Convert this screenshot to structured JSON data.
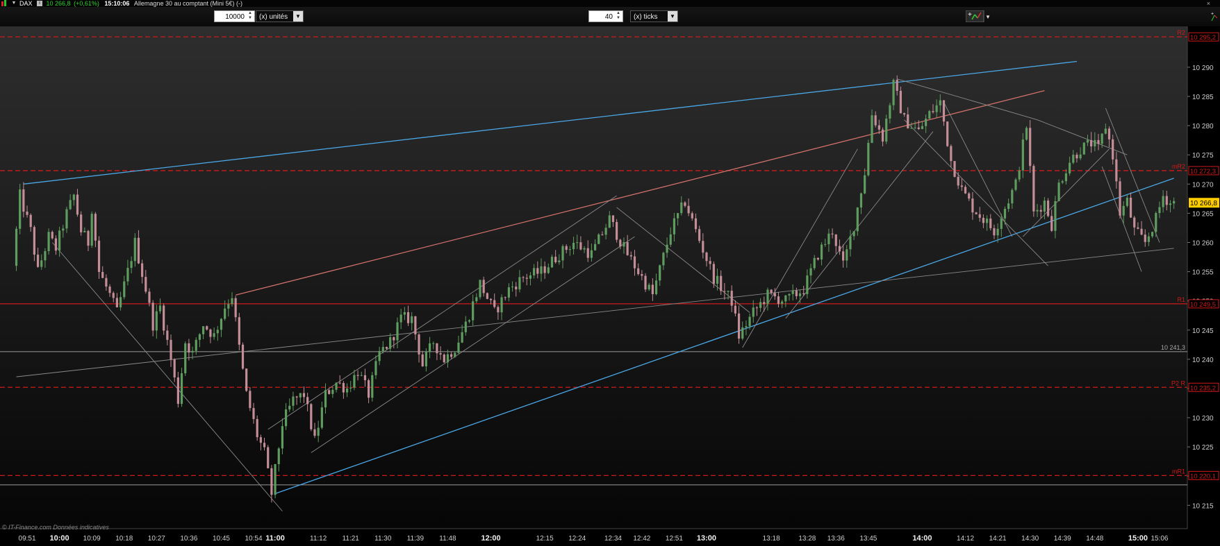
{
  "header": {
    "market_status_icon": "red-green-status-icon",
    "symbol": "DAX",
    "info_icon": "info-icon",
    "price": "10 266,8",
    "change": "(+0,61%)",
    "time": "15:10:06",
    "description": "Allemagne 30 au comptant (Mini 5€) (-)"
  },
  "toolbar": {
    "quantity_value": "10000",
    "quantity_unit": "(x) unités",
    "ticks_value": "40",
    "ticks_unit": "(x) ticks",
    "tools_icon": "chart-tools-icon"
  },
  "colors": {
    "background_top": "#2e2e2e",
    "background_bottom": "#060606",
    "candle_up": "#5f9c5f",
    "candle_down": "#c48e98",
    "pivot_line": "#d01a1a",
    "trend_blue": "#4aa8e8",
    "trend_red": "#d0706a",
    "trend_grey": "#8a8a8a",
    "price_tag": "#ffcc00"
  },
  "chart_data": {
    "type": "candlestick",
    "instrument": "DAX",
    "ylim": [
      10211,
      10297
    ],
    "y_ticks": [
      10215,
      10220,
      10225,
      10230,
      10235,
      10240,
      10245,
      10250,
      10255,
      10260,
      10265,
      10270,
      10275,
      10280,
      10285,
      10290
    ],
    "y_tick_labels": [
      "10 215",
      "10 220",
      "10 225",
      "10 230",
      "10 235",
      "10 240",
      "10 245",
      "10 250",
      "10 255",
      "10 260",
      "10 265",
      "10 270",
      "10 275",
      "10 280",
      "10 285",
      "10 290"
    ],
    "x_ticks": [
      {
        "label": "09:51",
        "bold": false
      },
      {
        "label": "10:00",
        "bold": true
      },
      {
        "label": "10:09",
        "bold": false
      },
      {
        "label": "10:18",
        "bold": false
      },
      {
        "label": "10:27",
        "bold": false
      },
      {
        "label": "10:36",
        "bold": false
      },
      {
        "label": "10:45",
        "bold": false
      },
      {
        "label": "10:54",
        "bold": false
      },
      {
        "label": "11:00",
        "bold": true
      },
      {
        "label": "11:12",
        "bold": false
      },
      {
        "label": "11:21",
        "bold": false
      },
      {
        "label": "11:30",
        "bold": false
      },
      {
        "label": "11:39",
        "bold": false
      },
      {
        "label": "11:48",
        "bold": false
      },
      {
        "label": "12:00",
        "bold": true
      },
      {
        "label": "12:15",
        "bold": false
      },
      {
        "label": "12:24",
        "bold": false
      },
      {
        "label": "12:34",
        "bold": false
      },
      {
        "label": "12:42",
        "bold": false
      },
      {
        "label": "12:51",
        "bold": false
      },
      {
        "label": "13:00",
        "bold": true
      },
      {
        "label": "13:18",
        "bold": false
      },
      {
        "label": "13:28",
        "bold": false
      },
      {
        "label": "13:36",
        "bold": false
      },
      {
        "label": "13:45",
        "bold": false
      },
      {
        "label": "14:00",
        "bold": true
      },
      {
        "label": "14:12",
        "bold": false
      },
      {
        "label": "14:21",
        "bold": false
      },
      {
        "label": "14:30",
        "bold": false
      },
      {
        "label": "14:39",
        "bold": false
      },
      {
        "label": "14:48",
        "bold": false
      },
      {
        "label": "15:00",
        "bold": true
      },
      {
        "label": "15:06",
        "bold": false
      }
    ],
    "close_path": [
      {
        "t": "09:48",
        "price": 10256
      },
      {
        "t": "09:50",
        "price": 10268
      },
      {
        "t": "09:53",
        "price": 10262
      },
      {
        "t": "09:55",
        "price": 10255
      },
      {
        "t": "09:58",
        "price": 10261
      },
      {
        "t": "10:00",
        "price": 10259
      },
      {
        "t": "10:03",
        "price": 10265
      },
      {
        "t": "10:05",
        "price": 10268
      },
      {
        "t": "10:07",
        "price": 10262
      },
      {
        "t": "10:09",
        "price": 10260
      },
      {
        "t": "10:10",
        "price": 10266
      },
      {
        "t": "10:12",
        "price": 10255
      },
      {
        "t": "10:15",
        "price": 10251
      },
      {
        "t": "10:17",
        "price": 10248
      },
      {
        "t": "10:20",
        "price": 10255
      },
      {
        "t": "10:22",
        "price": 10260
      },
      {
        "t": "10:25",
        "price": 10252
      },
      {
        "t": "10:27",
        "price": 10246
      },
      {
        "t": "10:29",
        "price": 10249
      },
      {
        "t": "10:32",
        "price": 10240
      },
      {
        "t": "10:34",
        "price": 10233
      },
      {
        "t": "10:36",
        "price": 10243
      },
      {
        "t": "10:38",
        "price": 10241
      },
      {
        "t": "10:41",
        "price": 10246
      },
      {
        "t": "10:44",
        "price": 10244
      },
      {
        "t": "10:47",
        "price": 10249
      },
      {
        "t": "10:49",
        "price": 10251
      },
      {
        "t": "10:51",
        "price": 10242
      },
      {
        "t": "10:53",
        "price": 10234
      },
      {
        "t": "10:56",
        "price": 10227
      },
      {
        "t": "10:58",
        "price": 10224
      },
      {
        "t": "11:00",
        "price": 10217
      },
      {
        "t": "11:03",
        "price": 10229
      },
      {
        "t": "11:06",
        "price": 10233
      },
      {
        "t": "11:09",
        "price": 10234
      },
      {
        "t": "11:12",
        "price": 10226
      },
      {
        "t": "11:15",
        "price": 10234
      },
      {
        "t": "11:18",
        "price": 10236
      },
      {
        "t": "11:21",
        "price": 10235
      },
      {
        "t": "11:24",
        "price": 10238
      },
      {
        "t": "11:27",
        "price": 10234
      },
      {
        "t": "11:30",
        "price": 10241
      },
      {
        "t": "11:33",
        "price": 10243
      },
      {
        "t": "11:36",
        "price": 10247
      },
      {
        "t": "11:39",
        "price": 10247
      },
      {
        "t": "11:42",
        "price": 10239
      },
      {
        "t": "11:45",
        "price": 10243
      },
      {
        "t": "11:48",
        "price": 10240
      },
      {
        "t": "11:51",
        "price": 10242
      },
      {
        "t": "11:54",
        "price": 10246
      },
      {
        "t": "11:58",
        "price": 10253
      },
      {
        "t": "12:02",
        "price": 10248
      },
      {
        "t": "12:06",
        "price": 10252
      },
      {
        "t": "12:10",
        "price": 10254
      },
      {
        "t": "12:15",
        "price": 10255
      },
      {
        "t": "12:20",
        "price": 10258
      },
      {
        "t": "12:24",
        "price": 10260
      },
      {
        "t": "12:29",
        "price": 10258
      },
      {
        "t": "12:34",
        "price": 10264
      },
      {
        "t": "12:38",
        "price": 10259
      },
      {
        "t": "12:42",
        "price": 10255
      },
      {
        "t": "12:46",
        "price": 10251
      },
      {
        "t": "12:51",
        "price": 10262
      },
      {
        "t": "12:55",
        "price": 10267
      },
      {
        "t": "12:58",
        "price": 10262
      },
      {
        "t": "13:03",
        "price": 10254
      },
      {
        "t": "13:08",
        "price": 10250
      },
      {
        "t": "13:10",
        "price": 10244
      },
      {
        "t": "13:14",
        "price": 10248
      },
      {
        "t": "13:18",
        "price": 10251
      },
      {
        "t": "13:23",
        "price": 10250
      },
      {
        "t": "13:28",
        "price": 10252
      },
      {
        "t": "13:32",
        "price": 10258
      },
      {
        "t": "13:36",
        "price": 10262
      },
      {
        "t": "13:39",
        "price": 10256
      },
      {
        "t": "13:42",
        "price": 10263
      },
      {
        "t": "13:45",
        "price": 10272
      },
      {
        "t": "13:47",
        "price": 10282
      },
      {
        "t": "13:50",
        "price": 10278
      },
      {
        "t": "13:53",
        "price": 10287
      },
      {
        "t": "13:56",
        "price": 10281
      },
      {
        "t": "14:00",
        "price": 10279
      },
      {
        "t": "14:03",
        "price": 10282
      },
      {
        "t": "14:06",
        "price": 10284
      },
      {
        "t": "14:09",
        "price": 10274
      },
      {
        "t": "14:12",
        "price": 10269
      },
      {
        "t": "14:15",
        "price": 10266
      },
      {
        "t": "14:18",
        "price": 10264
      },
      {
        "t": "14:21",
        "price": 10262
      },
      {
        "t": "14:24",
        "price": 10266
      },
      {
        "t": "14:27",
        "price": 10270
      },
      {
        "t": "14:30",
        "price": 10280
      },
      {
        "t": "14:32",
        "price": 10265
      },
      {
        "t": "14:35",
        "price": 10267
      },
      {
        "t": "14:37",
        "price": 10263
      },
      {
        "t": "14:39",
        "price": 10270
      },
      {
        "t": "14:42",
        "price": 10274
      },
      {
        "t": "14:45",
        "price": 10276
      },
      {
        "t": "14:48",
        "price": 10277
      },
      {
        "t": "14:50",
        "price": 10276
      },
      {
        "t": "14:52",
        "price": 10280
      },
      {
        "t": "14:54",
        "price": 10275
      },
      {
        "t": "14:56",
        "price": 10265
      },
      {
        "t": "14:58",
        "price": 10267
      },
      {
        "t": "15:00",
        "price": 10262
      },
      {
        "t": "15:03",
        "price": 10260
      },
      {
        "t": "15:06",
        "price": 10264
      },
      {
        "t": "15:08",
        "price": 10268
      },
      {
        "t": "15:10",
        "price": 10266.8
      }
    ],
    "last_price": {
      "value": 10266.8,
      "label": "10 266,8"
    },
    "horizontal_levels": [
      {
        "name": "R2",
        "value": 10295.2,
        "label": "10 295,2",
        "style": "dashed"
      },
      {
        "name": "mR2",
        "value": 10272.3,
        "label": "10 272,3",
        "style": "dashed"
      },
      {
        "name": "R1",
        "value": 10249.5,
        "label": "10 249,5",
        "style": "solid"
      },
      {
        "name": "",
        "value": 10241.3,
        "label": "10 241,3",
        "style": "solid-grey"
      },
      {
        "name": "P2 R",
        "value": 10235.2,
        "label": "10 235,2",
        "style": "dashed"
      },
      {
        "name": "mR1",
        "value": 10220.1,
        "label": "10 220,1",
        "style": "dashed"
      },
      {
        "name": "",
        "value": 10218.5,
        "label": "",
        "style": "solid-grey"
      }
    ],
    "trend_lines": [
      {
        "color": "blue",
        "from": {
          "t": "09:50",
          "price": 10270
        },
        "to": {
          "t": "14:43",
          "price": 10291
        }
      },
      {
        "color": "blue",
        "from": {
          "t": "11:00",
          "price": 10217
        },
        "to": {
          "t": "15:10",
          "price": 10271
        }
      },
      {
        "color": "red",
        "from": {
          "t": "10:49",
          "price": 10251
        },
        "to": {
          "t": "14:34",
          "price": 10286
        }
      },
      {
        "color": "grey",
        "from": {
          "t": "09:48",
          "price": 10237
        },
        "to": {
          "t": "15:10",
          "price": 10259
        }
      },
      {
        "color": "grey",
        "from": {
          "t": "09:58",
          "price": 10260
        },
        "to": {
          "t": "11:02",
          "price": 10214
        }
      },
      {
        "color": "grey",
        "from": {
          "t": "10:58",
          "price": 10228
        },
        "to": {
          "t": "12:35",
          "price": 10268
        }
      },
      {
        "color": "grey",
        "from": {
          "t": "11:10",
          "price": 10224
        },
        "to": {
          "t": "12:40",
          "price": 10261
        }
      },
      {
        "color": "grey",
        "from": {
          "t": "12:35",
          "price": 10266
        },
        "to": {
          "t": "13:12",
          "price": 10248
        }
      },
      {
        "color": "grey",
        "from": {
          "t": "13:10",
          "price": 10242
        },
        "to": {
          "t": "13:42",
          "price": 10276
        }
      },
      {
        "color": "grey",
        "from": {
          "t": "13:22",
          "price": 10247
        },
        "to": {
          "t": "14:03",
          "price": 10279
        }
      },
      {
        "color": "grey",
        "from": {
          "t": "13:53",
          "price": 10288
        },
        "to": {
          "t": "14:32",
          "price": 10281
        }
      },
      {
        "color": "grey",
        "from": {
          "t": "14:32",
          "price": 10281
        },
        "to": {
          "t": "14:57",
          "price": 10275
        }
      },
      {
        "color": "grey",
        "from": {
          "t": "13:55",
          "price": 10281
        },
        "to": {
          "t": "14:35",
          "price": 10256
        }
      },
      {
        "color": "grey",
        "from": {
          "t": "14:06",
          "price": 10284
        },
        "to": {
          "t": "14:25",
          "price": 10261
        }
      },
      {
        "color": "grey",
        "from": {
          "t": "14:28",
          "price": 10261
        },
        "to": {
          "t": "14:52",
          "price": 10276
        }
      },
      {
        "color": "grey",
        "from": {
          "t": "14:51",
          "price": 10283
        },
        "to": {
          "t": "15:06",
          "price": 10260
        }
      },
      {
        "color": "grey",
        "from": {
          "t": "14:50",
          "price": 10273
        },
        "to": {
          "t": "15:01",
          "price": 10255
        }
      }
    ],
    "watermark": "© IT-Finance.com Données indicatives"
  }
}
